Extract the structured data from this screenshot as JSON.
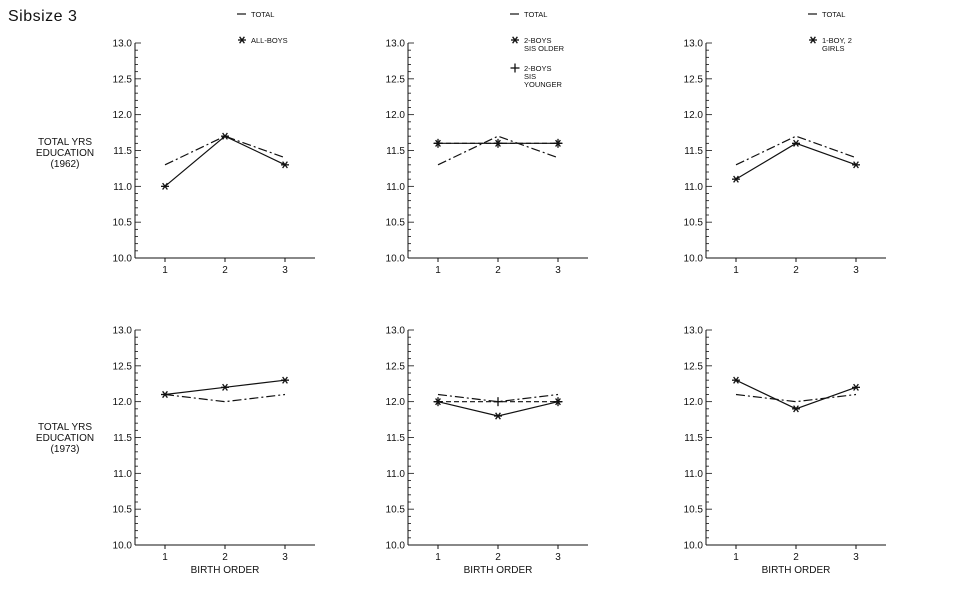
{
  "page": {
    "title": "Sibsize 3"
  },
  "row_labels": [
    {
      "lines": [
        "TOTAL YRS",
        "EDUCATION",
        "(1962)"
      ]
    },
    {
      "lines": [
        "TOTAL YRS",
        "EDUCATION",
        "(1973)"
      ]
    }
  ],
  "chart_data": [
    {
      "type": "line",
      "categories": [
        "1",
        "2",
        "3"
      ],
      "xlabel": "",
      "ylabel": "",
      "ylim": [
        10.0,
        13.0
      ],
      "yticks": [
        "10.0",
        "10.5",
        "11.0",
        "11.5",
        "12.0",
        "12.5",
        "13.0"
      ],
      "legend": [
        {
          "lines": [
            "TOTAL"
          ]
        },
        {
          "lines": [
            "ALL-BOYS"
          ]
        }
      ],
      "series": [
        {
          "name": "TOTAL",
          "style": "dashdot",
          "marker": "none",
          "values": [
            11.3,
            11.7,
            11.4
          ]
        },
        {
          "name": "ALL-BOYS",
          "style": "solid",
          "marker": "star",
          "values": [
            11.0,
            11.7,
            11.3
          ]
        }
      ]
    },
    {
      "type": "line",
      "categories": [
        "1",
        "2",
        "3"
      ],
      "xlabel": "",
      "ylabel": "",
      "ylim": [
        10.0,
        13.0
      ],
      "yticks": [
        "10.0",
        "10.5",
        "11.0",
        "11.5",
        "12.0",
        "12.5",
        "13.0"
      ],
      "legend": [
        {
          "lines": [
            "TOTAL"
          ]
        },
        {
          "lines": [
            "2-BOYS",
            "SIS OLDER"
          ]
        },
        {
          "lines": [
            "2-BOYS",
            "SIS",
            "YOUNGER"
          ]
        }
      ],
      "series": [
        {
          "name": "TOTAL",
          "style": "dashdot",
          "marker": "none",
          "values": [
            11.3,
            11.7,
            11.4
          ]
        },
        {
          "name": "2-BOYS SIS OLDER",
          "style": "solid",
          "marker": "star",
          "values": [
            11.6,
            11.6,
            11.6
          ]
        },
        {
          "name": "2-BOYS SIS YOUNGER",
          "style": "dashed",
          "marker": "plus",
          "values": [
            11.6,
            11.6,
            11.6
          ]
        }
      ]
    },
    {
      "type": "line",
      "categories": [
        "1",
        "2",
        "3"
      ],
      "xlabel": "",
      "ylabel": "",
      "ylim": [
        10.0,
        13.0
      ],
      "yticks": [
        "10.0",
        "10.5",
        "11.0",
        "11.5",
        "12.0",
        "12.5",
        "13.0"
      ],
      "legend": [
        {
          "lines": [
            "TOTAL"
          ]
        },
        {
          "lines": [
            "1-BOY, 2",
            "GIRLS"
          ]
        }
      ],
      "series": [
        {
          "name": "TOTAL",
          "style": "dashdot",
          "marker": "none",
          "values": [
            11.3,
            11.7,
            11.4
          ]
        },
        {
          "name": "1-BOY, 2 GIRLS",
          "style": "solid",
          "marker": "star",
          "values": [
            11.1,
            11.6,
            11.3
          ]
        }
      ]
    },
    {
      "type": "line",
      "categories": [
        "1",
        "2",
        "3"
      ],
      "xlabel": "BIRTH ORDER",
      "ylabel": "",
      "ylim": [
        10.0,
        13.0
      ],
      "yticks": [
        "10.0",
        "10.5",
        "11.0",
        "11.5",
        "12.0",
        "12.5",
        "13.0"
      ],
      "legend": [],
      "series": [
        {
          "name": "TOTAL",
          "style": "dashdot",
          "marker": "none",
          "values": [
            12.1,
            12.0,
            12.1
          ]
        },
        {
          "name": "ALL-BOYS",
          "style": "solid",
          "marker": "star",
          "values": [
            12.1,
            12.2,
            12.3
          ]
        }
      ]
    },
    {
      "type": "line",
      "categories": [
        "1",
        "2",
        "3"
      ],
      "xlabel": "BIRTH ORDER",
      "ylabel": "",
      "ylim": [
        10.0,
        13.0
      ],
      "yticks": [
        "10.0",
        "10.5",
        "11.0",
        "11.5",
        "12.0",
        "12.5",
        "13.0"
      ],
      "legend": [],
      "series": [
        {
          "name": "TOTAL",
          "style": "dashdot",
          "marker": "none",
          "values": [
            12.1,
            12.0,
            12.1
          ]
        },
        {
          "name": "2-BOYS SIS OLDER",
          "style": "solid",
          "marker": "star",
          "values": [
            12.0,
            11.8,
            12.0
          ]
        },
        {
          "name": "2-BOYS SIS YOUNGER",
          "style": "dashed",
          "marker": "plus",
          "values": [
            12.0,
            12.0,
            12.0
          ]
        }
      ]
    },
    {
      "type": "line",
      "categories": [
        "1",
        "2",
        "3"
      ],
      "xlabel": "BIRTH ORDER",
      "ylabel": "",
      "ylim": [
        10.0,
        13.0
      ],
      "yticks": [
        "10.0",
        "10.5",
        "11.0",
        "11.5",
        "12.0",
        "12.5",
        "13.0"
      ],
      "legend": [],
      "series": [
        {
          "name": "TOTAL",
          "style": "dashdot",
          "marker": "none",
          "values": [
            12.1,
            12.0,
            12.1
          ]
        },
        {
          "name": "1-BOY, 2 GIRLS",
          "style": "solid",
          "marker": "star",
          "values": [
            12.3,
            11.9,
            12.2
          ]
        }
      ]
    }
  ]
}
